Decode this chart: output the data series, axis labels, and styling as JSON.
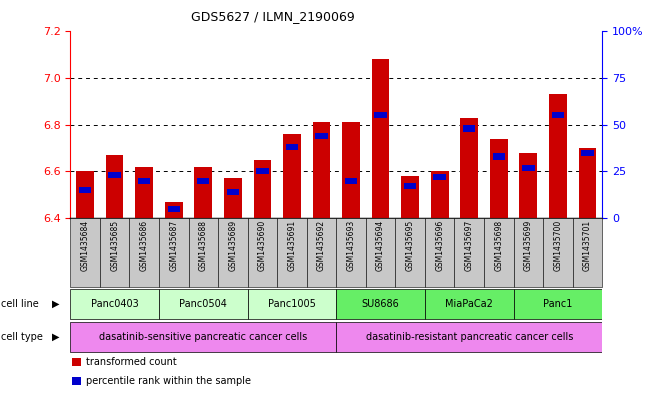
{
  "title": "GDS5627 / ILMN_2190069",
  "samples": [
    "GSM1435684",
    "GSM1435685",
    "GSM1435686",
    "GSM1435687",
    "GSM1435688",
    "GSM1435689",
    "GSM1435690",
    "GSM1435691",
    "GSM1435692",
    "GSM1435693",
    "GSM1435694",
    "GSM1435695",
    "GSM1435696",
    "GSM1435697",
    "GSM1435698",
    "GSM1435699",
    "GSM1435700",
    "GSM1435701"
  ],
  "bar_values": [
    6.6,
    6.67,
    6.62,
    6.47,
    6.62,
    6.57,
    6.65,
    6.76,
    6.81,
    6.81,
    7.08,
    6.58,
    6.6,
    6.83,
    6.74,
    6.68,
    6.93,
    6.7
  ],
  "blue_pct": [
    15,
    23,
    20,
    5,
    20,
    14,
    25,
    38,
    44,
    20,
    55,
    17,
    22,
    48,
    33,
    27,
    55,
    35
  ],
  "y_min": 6.4,
  "y_max": 7.2,
  "y_ticks_left": [
    6.4,
    6.6,
    6.8,
    7.0,
    7.2
  ],
  "y_ticks_right_pct": [
    0,
    25,
    50,
    75,
    100
  ],
  "bar_color": "#cc0000",
  "blue_color": "#0000cc",
  "xtick_bg": "#c8c8c8",
  "cell_lines": [
    {
      "label": "Panc0403",
      "start": 0,
      "end": 2,
      "color": "#ccffcc"
    },
    {
      "label": "Panc0504",
      "start": 3,
      "end": 5,
      "color": "#ccffcc"
    },
    {
      "label": "Panc1005",
      "start": 6,
      "end": 8,
      "color": "#ccffcc"
    },
    {
      "label": "SU8686",
      "start": 9,
      "end": 11,
      "color": "#66ee66"
    },
    {
      "label": "MiaPaCa2",
      "start": 12,
      "end": 14,
      "color": "#66ee66"
    },
    {
      "label": "Panc1",
      "start": 15,
      "end": 17,
      "color": "#66ee66"
    }
  ],
  "cell_types": [
    {
      "label": "dasatinib-sensitive pancreatic cancer cells",
      "start": 0,
      "end": 8,
      "color": "#ee88ee"
    },
    {
      "label": "dasatinib-resistant pancreatic cancer cells",
      "start": 9,
      "end": 17,
      "color": "#ee88ee"
    }
  ],
  "legend_items": [
    {
      "label": "transformed count",
      "color": "#cc0000"
    },
    {
      "label": "percentile rank within the sample",
      "color": "#0000cc"
    }
  ]
}
